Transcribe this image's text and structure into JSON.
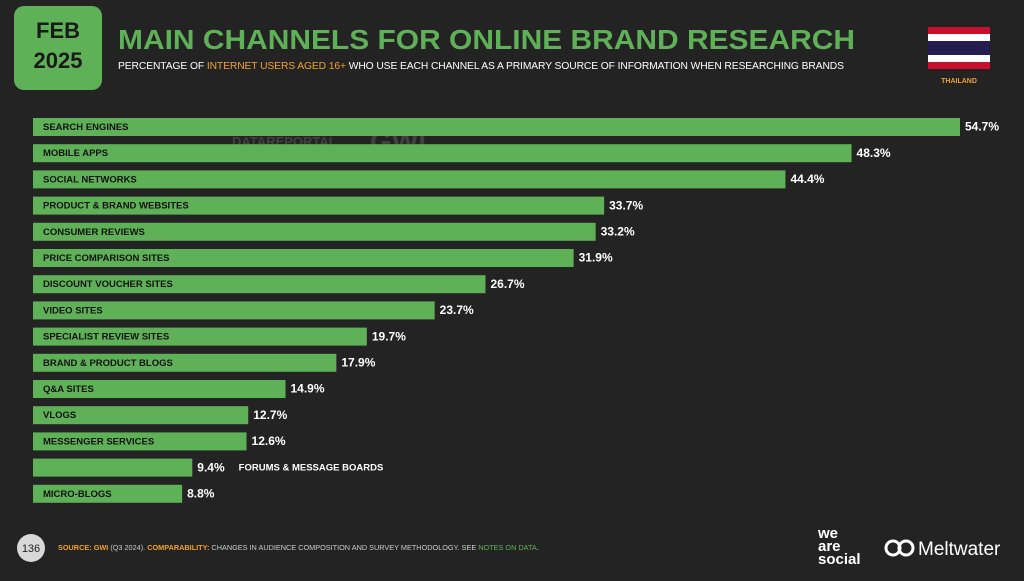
{
  "badge": {
    "month": "FEB",
    "year": "2025"
  },
  "country": "THAILAND",
  "watermark": {
    "left": "DATAREPORTAL",
    "right": "GWI."
  },
  "chart_data": {
    "type": "bar",
    "orientation": "horizontal",
    "title": "MAIN CHANNELS FOR ONLINE BRAND RESEARCH",
    "subtitle": {
      "before": "PERCENTAGE OF",
      "highlight": "INTERNET USERS AGED 16+",
      "after": "WHO USE EACH CHANNEL AS A PRIMARY SOURCE OF INFORMATION WHEN RESEARCHING BRANDS"
    },
    "categories": [
      "SEARCH ENGINES",
      "MOBILE APPS",
      "SOCIAL NETWORKS",
      "PRODUCT & BRAND WEBSITES",
      "CONSUMER REVIEWS",
      "PRICE COMPARISON SITES",
      "DISCOUNT VOUCHER SITES",
      "VIDEO SITES",
      "SPECIALIST REVIEW SITES",
      "BRAND & PRODUCT BLOGS",
      "Q&A SITES",
      "VLOGS",
      "MESSENGER SERVICES",
      "FORUMS & MESSAGE BOARDS",
      "MICRO-BLOGS"
    ],
    "values": [
      54.7,
      48.3,
      44.4,
      33.7,
      33.2,
      31.9,
      26.7,
      23.7,
      19.7,
      17.9,
      14.9,
      12.7,
      12.6,
      9.4,
      8.8
    ],
    "value_labels": [
      "54.7%",
      "48.3%",
      "44.4%",
      "33.7%",
      "33.2%",
      "31.9%",
      "26.7%",
      "23.7%",
      "19.7%",
      "17.9%",
      "14.9%",
      "12.7%",
      "12.6%",
      "9.4%",
      "8.8%"
    ],
    "color": "#5fb157"
  },
  "footer": {
    "page": "136",
    "source_label": "SOURCE:",
    "source": "GWI",
    "source_period": "(Q3 2024).",
    "comparability_label": "COMPARABILITY:",
    "comparability": "CHANGES IN AUDIENCE COMPOSITION AND SURVEY METHODOLOGY. SEE",
    "notes_link": "NOTES ON DATA",
    "end": "."
  },
  "logos": {
    "was_1": "we",
    "was_2": "are",
    "was_3": "social",
    "meltwater": "Meltwater"
  }
}
